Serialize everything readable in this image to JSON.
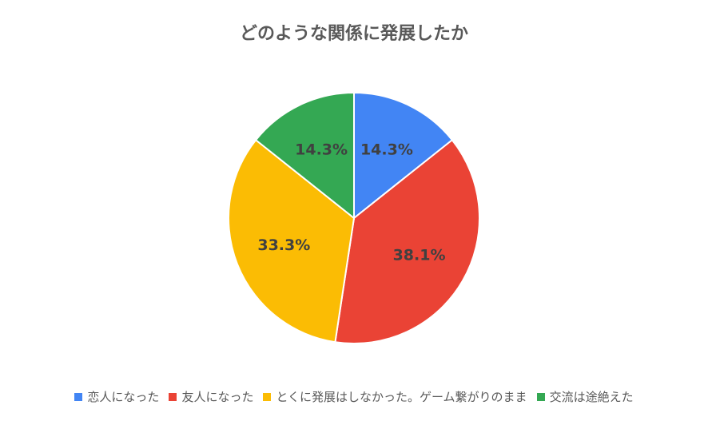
{
  "chart_data": {
    "type": "pie",
    "title": "どのような関係に発展したか",
    "categories": [
      "恋人になった",
      "友人になった",
      "とくに発展はしなかった。ゲーム繋がりのまま",
      "交流は途絶えた"
    ],
    "values": [
      14.3,
      38.1,
      33.3,
      14.3
    ],
    "value_labels": [
      "14.3%",
      "38.1%",
      "33.3%",
      "14.3%"
    ],
    "colors": [
      "#4285F4",
      "#EA4335",
      "#FBBC04",
      "#34A853"
    ],
    "start_angle_deg": 0,
    "direction": "clockwise",
    "legend_position": "bottom"
  }
}
